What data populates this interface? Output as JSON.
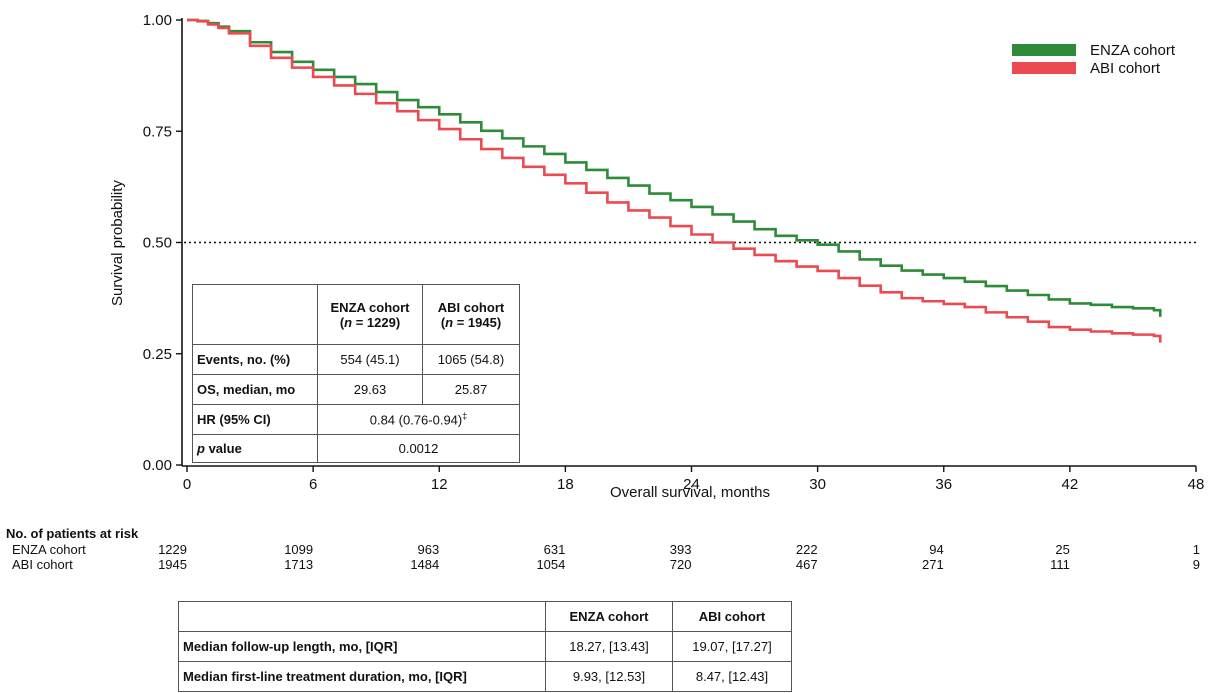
{
  "chart_data": {
    "type": "line",
    "chart_style": "kaplan-meier step",
    "xlabel": "Overall survival, months",
    "ylabel": "Survival probability",
    "xlim": [
      0,
      48
    ],
    "ylim": [
      0,
      1
    ],
    "xticks": [
      "0",
      "6",
      "12",
      "18",
      "24",
      "30",
      "36",
      "42",
      "48"
    ],
    "yticks": [
      "0.00",
      "0.25",
      "0.50",
      "0.75",
      "1.00"
    ],
    "reference_line": {
      "y": 0.5,
      "style": "dotted"
    },
    "legend_position": "top-right",
    "series": [
      {
        "name": "ENZA cohort",
        "color": "#2e8b3a",
        "x": [
          0,
          0.5,
          1,
          1.5,
          2,
          3,
          4,
          5,
          6,
          7,
          8,
          9,
          10,
          11,
          12,
          13,
          14,
          15,
          16,
          17,
          18,
          19,
          20,
          21,
          22,
          23,
          24,
          25,
          26,
          27,
          28,
          29,
          30,
          31,
          32,
          33,
          34,
          35,
          36,
          37,
          38,
          39,
          40,
          41,
          42,
          43,
          44,
          45,
          46,
          46.3
        ],
        "y": [
          1.0,
          0.998,
          0.993,
          0.985,
          0.975,
          0.95,
          0.928,
          0.906,
          0.888,
          0.872,
          0.856,
          0.838,
          0.82,
          0.804,
          0.788,
          0.77,
          0.751,
          0.734,
          0.716,
          0.699,
          0.68,
          0.663,
          0.645,
          0.628,
          0.61,
          0.595,
          0.58,
          0.563,
          0.547,
          0.53,
          0.515,
          0.505,
          0.495,
          0.48,
          0.462,
          0.448,
          0.437,
          0.428,
          0.42,
          0.412,
          0.402,
          0.392,
          0.382,
          0.372,
          0.363,
          0.36,
          0.355,
          0.352,
          0.348,
          0.333
        ]
      },
      {
        "name": "ABI cohort",
        "color": "#ea4a50",
        "x": [
          0,
          0.5,
          1,
          1.5,
          2,
          3,
          4,
          5,
          6,
          7,
          8,
          9,
          10,
          11,
          12,
          13,
          14,
          15,
          16,
          17,
          18,
          19,
          20,
          21,
          22,
          23,
          24,
          25,
          26,
          27,
          28,
          29,
          30,
          31,
          32,
          33,
          34,
          35,
          36,
          37,
          38,
          39,
          40,
          41,
          42,
          43,
          44,
          45,
          46,
          46.3
        ],
        "y": [
          1.0,
          0.997,
          0.99,
          0.982,
          0.97,
          0.942,
          0.915,
          0.893,
          0.872,
          0.853,
          0.834,
          0.813,
          0.795,
          0.775,
          0.755,
          0.732,
          0.71,
          0.69,
          0.67,
          0.652,
          0.633,
          0.612,
          0.59,
          0.572,
          0.556,
          0.537,
          0.518,
          0.5,
          0.486,
          0.472,
          0.458,
          0.446,
          0.436,
          0.42,
          0.403,
          0.388,
          0.375,
          0.368,
          0.362,
          0.355,
          0.343,
          0.332,
          0.322,
          0.31,
          0.304,
          0.3,
          0.296,
          0.293,
          0.29,
          0.275
        ]
      }
    ],
    "at_risk": {
      "title": "No. of patients at risk",
      "rows": [
        {
          "label": "ENZA cohort",
          "values": [
            "1229",
            "1099",
            "963",
            "631",
            "393",
            "222",
            "94",
            "25",
            "1"
          ]
        },
        {
          "label": "ABI cohort",
          "values": [
            "1945",
            "1713",
            "1484",
            "1054",
            "720",
            "467",
            "271",
            "111",
            "9"
          ]
        }
      ]
    }
  },
  "inset_table": {
    "header": {
      "enza_line1": "ENZA cohort",
      "enza_line2_open": "(",
      "enza_n": "n",
      "enza_line2_close": " = 1229)",
      "abi_line1": "ABI cohort",
      "abi_line2_open": "(",
      "abi_n": "n",
      "abi_line2_close": " = 1945)"
    },
    "events_label": "Events, no. (%)",
    "events_enza": "554 (45.1)",
    "events_abi": "1065 (54.8)",
    "os_label": "OS, median, mo",
    "os_enza": "29.63",
    "os_abi": "25.87",
    "hr_label": "HR (95% CI)",
    "hr_value": "0.84 (0.76-0.94)",
    "hr_mark": "‡",
    "p_label_italic": "p",
    "p_label_rest": " value",
    "p_value": "0.0012"
  },
  "followup_table": {
    "col_enza": "ENZA cohort",
    "col_abi": "ABI cohort",
    "rows": [
      {
        "label": "Median follow-up length, mo, [IQR]",
        "enza": "18.27, [13.43]",
        "abi": "19.07, [17.27]"
      },
      {
        "label": "Median first-line treatment duration, mo, [IQR]",
        "enza": "9.93, [12.53]",
        "abi": "8.47, [12.43]"
      }
    ]
  }
}
